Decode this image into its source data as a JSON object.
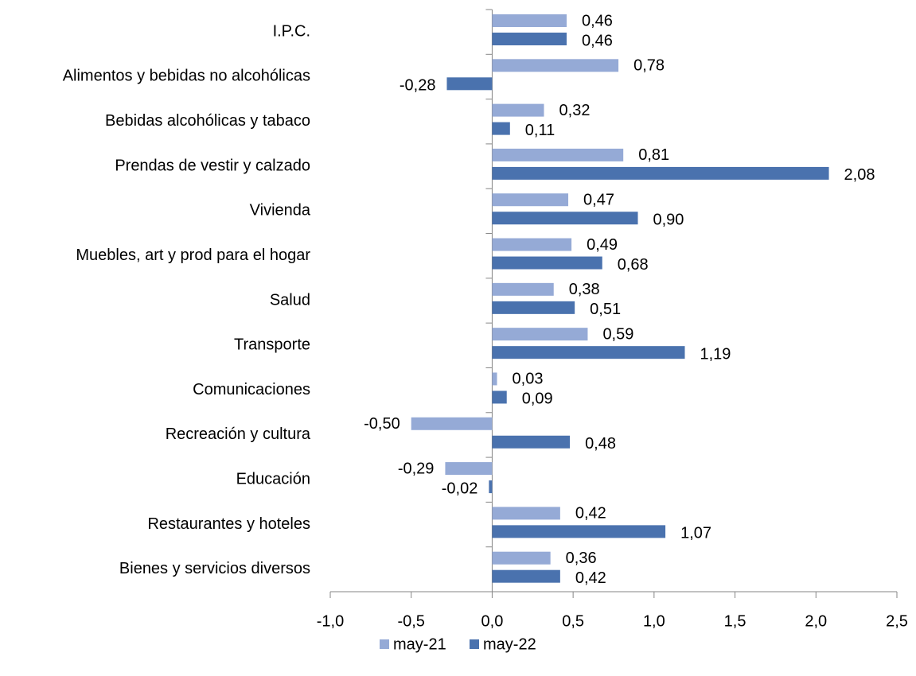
{
  "chart_data": {
    "type": "bar",
    "orientation": "horizontal",
    "categories": [
      "I.P.C.",
      "Alimentos y bebidas no alcohólicas",
      "Bebidas alcohólicas y tabaco",
      "Prendas de vestir y calzado",
      "Vivienda",
      "Muebles, art y prod para el hogar",
      "Salud",
      "Transporte",
      "Comunicaciones",
      "Recreación y cultura",
      "Educación",
      "Restaurantes y hoteles",
      "Bienes y servicios diversos"
    ],
    "series": [
      {
        "name": "may-21",
        "color": "#95aad6",
        "values": [
          0.46,
          0.78,
          0.32,
          0.81,
          0.47,
          0.49,
          0.38,
          0.59,
          0.03,
          -0.5,
          -0.29,
          0.42,
          0.36
        ],
        "value_labels": [
          "0,46",
          "0,78",
          "0,32",
          "0,81",
          "0,47",
          "0,49",
          "0,38",
          "0,59",
          "0,03",
          "-0,50",
          "-0,29",
          "0,42",
          "0,36"
        ]
      },
      {
        "name": "may-22",
        "color": "#4a72ae",
        "values": [
          0.46,
          -0.28,
          0.11,
          2.08,
          0.9,
          0.68,
          0.51,
          1.19,
          0.09,
          0.48,
          -0.02,
          1.07,
          0.42
        ],
        "value_labels": [
          "0,46",
          "-0,28",
          "0,11",
          "2,08",
          "0,90",
          "0,68",
          "0,51",
          "1,19",
          "0,09",
          "0,48",
          "-0,02",
          "1,07",
          "0,42"
        ]
      }
    ],
    "xlim": [
      -1.0,
      2.5
    ],
    "xticks": [
      {
        "value": -1.0,
        "label": "-1,0"
      },
      {
        "value": -0.5,
        "label": "-0,5"
      },
      {
        "value": 0.0,
        "label": "0,0"
      },
      {
        "value": 0.5,
        "label": "0,5"
      },
      {
        "value": 1.0,
        "label": "1,0"
      },
      {
        "value": 1.5,
        "label": "1,5"
      },
      {
        "value": 2.0,
        "label": "2,0"
      },
      {
        "value": 2.5,
        "label": "2,5"
      }
    ],
    "legend": "bottom"
  }
}
